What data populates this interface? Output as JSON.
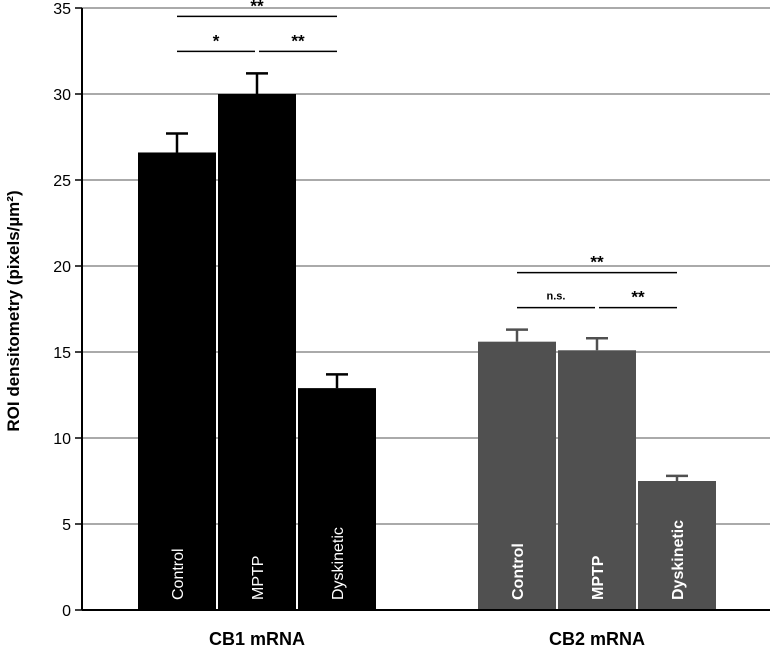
{
  "chart_data": {
    "type": "bar",
    "ylabel": "ROI densitometry (pixels/µm²)",
    "ylim": [
      0,
      35
    ],
    "yticks": [
      0,
      5,
      10,
      15,
      20,
      25,
      30,
      35
    ],
    "grid": true,
    "groups": [
      {
        "name": "CB1 mRNA",
        "color": "#000000",
        "bars": [
          {
            "label": "Control",
            "value": 26.6,
            "error": 1.1
          },
          {
            "label": "MPTP",
            "value": 30.0,
            "error": 1.2
          },
          {
            "label": "Dyskinetic",
            "value": 12.9,
            "error": 0.8
          }
        ],
        "significance": [
          {
            "from": 0,
            "to": 2,
            "text": "**",
            "level": 1
          },
          {
            "from": 0,
            "to": 1,
            "text": "*",
            "level": 0
          },
          {
            "from": 1,
            "to": 2,
            "text": "**",
            "level": 0
          }
        ]
      },
      {
        "name": "CB2 mRNA",
        "color": "#505050",
        "bars": [
          {
            "label": "Control",
            "value": 15.6,
            "error": 0.7
          },
          {
            "label": "MPTP",
            "value": 15.1,
            "error": 0.7
          },
          {
            "label": "Dyskinetic",
            "value": 7.5,
            "error": 0.3
          }
        ],
        "significance": [
          {
            "from": 0,
            "to": 2,
            "text": "**",
            "level": 1
          },
          {
            "from": 0,
            "to": 1,
            "text": "n.s.",
            "level": 0
          },
          {
            "from": 1,
            "to": 2,
            "text": "**",
            "level": 0
          }
        ]
      }
    ]
  }
}
